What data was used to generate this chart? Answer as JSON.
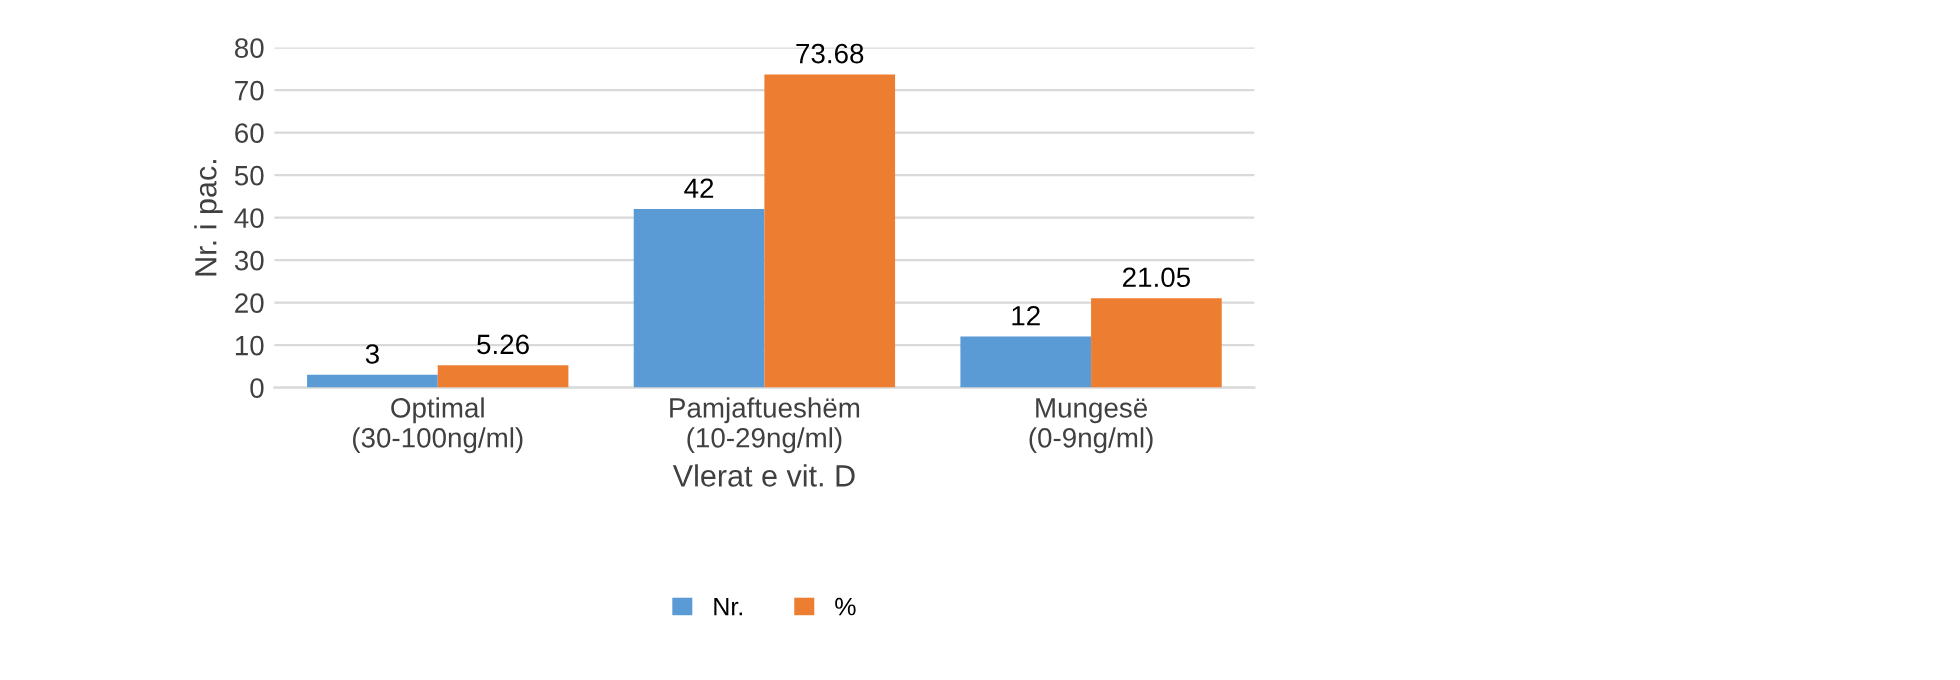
{
  "chart_data": {
    "type": "bar",
    "xlabel": "Vlerat e vit. D",
    "ylabel": "Nr. i pac.",
    "categories": [
      "Optimal (30-100ng/ml)",
      "Pamjaftueshëm (10-29ng/ml)",
      "Mungesë (0-9ng/ml)"
    ],
    "series": [
      {
        "name": "Nr.",
        "color": "#5b9bd5",
        "values": [
          3,
          42,
          12
        ]
      },
      {
        "name": "%",
        "color": "#ed7d31",
        "values": [
          5.26,
          73.68,
          21.05
        ]
      }
    ],
    "ylim": [
      0,
      80
    ],
    "yticks": [
      0,
      10,
      20,
      30,
      40,
      50,
      60,
      70,
      80
    ],
    "grid": "y",
    "legend": "bottom",
    "data_labels": true
  }
}
